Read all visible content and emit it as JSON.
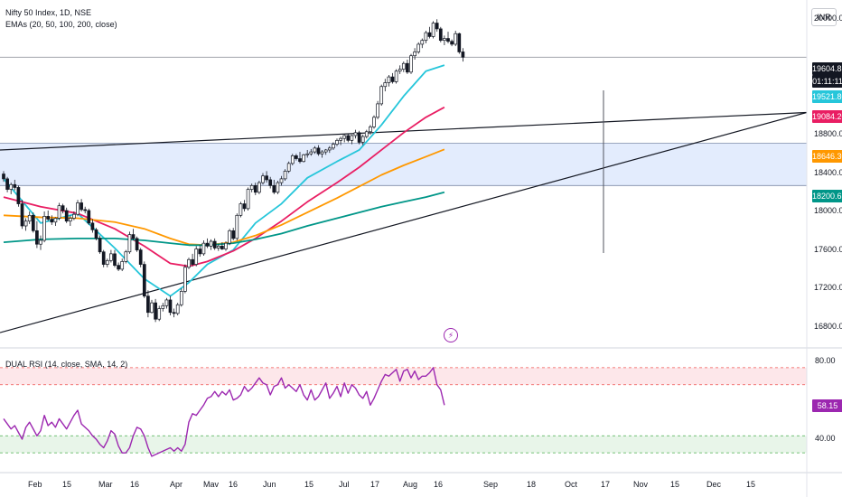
{
  "header": {
    "symbol": "Nifty 50 Index, 1D, NSE",
    "indicator": "EMAs (20, 50, 100, 200, close)",
    "currency": "INR"
  },
  "rsi_panel": {
    "label": "DUAL RSI (14, close, SMA, 14, 2)",
    "overbought": 80,
    "oversold": 40,
    "current_tag": "58.15",
    "upper_label": "80.00",
    "lower_label": "40.00"
  },
  "tags": {
    "last_price": "19604.85",
    "countdown": "01:11:11",
    "ema20": "19521.80",
    "ema50": "19084.20",
    "ema100": "18646.30",
    "ema200": "18200.65"
  },
  "colors": {
    "ema20": "#26c6da",
    "ema50": "#e91e63",
    "ema100": "#ff9800",
    "ema200": "#009688",
    "rsi": "#9c27b0",
    "zone_band": "#e3ecfd",
    "overbought_fill": "#fde7ea",
    "oversold_fill": "#e8f5e9"
  },
  "price_axis": [
    "20000.00",
    "18800.00",
    "18400.00",
    "18000.00",
    "17600.00",
    "17200.00",
    "16800.00"
  ],
  "time_axis": [
    "Feb",
    "15",
    "Mar",
    "16",
    "Apr",
    "Mav",
    "16",
    "Jun",
    "15",
    "Jul",
    "17",
    "Aug",
    "16",
    "Sep",
    "18",
    "Oct",
    "17",
    "Nov",
    "15",
    "Dec",
    "15"
  ],
  "alert_icon": "lightning-bolt-icon",
  "chart_data": {
    "type": "candlestick",
    "ylim": [
      16600,
      20200
    ],
    "xlabel": "",
    "ylabel": "",
    "candles": [
      [
        18390,
        18420,
        18310,
        18340
      ],
      [
        18340,
        18360,
        18200,
        18230
      ],
      [
        18230,
        18300,
        18180,
        18280
      ],
      [
        18280,
        18330,
        18220,
        18250
      ],
      [
        18250,
        18270,
        18050,
        18080
      ],
      [
        18080,
        18120,
        17820,
        17850
      ],
      [
        17850,
        17930,
        17800,
        17900
      ],
      [
        17900,
        18000,
        17870,
        17960
      ],
      [
        17960,
        17990,
        17780,
        17800
      ],
      [
        17800,
        17900,
        17620,
        17660
      ],
      [
        17660,
        17750,
        17600,
        17700
      ],
      [
        17700,
        18000,
        17680,
        17950
      ],
      [
        17950,
        18010,
        17900,
        17920
      ],
      [
        17920,
        17960,
        17860,
        17890
      ],
      [
        17890,
        17940,
        17850,
        17930
      ],
      [
        17930,
        18090,
        17910,
        18060
      ],
      [
        18060,
        18080,
        17980,
        18010
      ],
      [
        18010,
        18040,
        17880,
        17900
      ],
      [
        17900,
        17960,
        17850,
        17930
      ],
      [
        17930,
        18000,
        17910,
        17970
      ],
      [
        17970,
        18120,
        17950,
        18090
      ],
      [
        18090,
        18130,
        18000,
        18020
      ],
      [
        18020,
        18050,
        17980,
        18010
      ],
      [
        18010,
        18030,
        17860,
        17880
      ],
      [
        17880,
        17920,
        17780,
        17810
      ],
      [
        17810,
        17830,
        17700,
        17720
      ],
      [
        17720,
        17750,
        17560,
        17580
      ],
      [
        17580,
        17600,
        17420,
        17450
      ],
      [
        17450,
        17510,
        17420,
        17490
      ],
      [
        17490,
        17600,
        17470,
        17560
      ],
      [
        17560,
        17600,
        17420,
        17440
      ],
      [
        17440,
        17470,
        17380,
        17400
      ],
      [
        17400,
        17510,
        17380,
        17480
      ],
      [
        17480,
        17600,
        17460,
        17580
      ],
      [
        17580,
        17790,
        17560,
        17760
      ],
      [
        17760,
        17820,
        17700,
        17720
      ],
      [
        17720,
        17740,
        17580,
        17600
      ],
      [
        17600,
        17620,
        17420,
        17450
      ],
      [
        17450,
        17480,
        17100,
        17120
      ],
      [
        17120,
        17180,
        16900,
        16950
      ],
      [
        16950,
        17080,
        16940,
        17050
      ],
      [
        17050,
        17090,
        16850,
        16880
      ],
      [
        16880,
        17020,
        16860,
        16990
      ],
      [
        16990,
        17050,
        16960,
        17020
      ],
      [
        17020,
        17100,
        16990,
        17080
      ],
      [
        17080,
        17120,
        16920,
        16950
      ],
      [
        16950,
        16990,
        16900,
        16940
      ],
      [
        16940,
        17050,
        16920,
        17030
      ],
      [
        17030,
        17200,
        17010,
        17170
      ],
      [
        17170,
        17450,
        17150,
        17420
      ],
      [
        17420,
        17520,
        17400,
        17500
      ],
      [
        17500,
        17560,
        17430,
        17450
      ],
      [
        17450,
        17640,
        17430,
        17610
      ],
      [
        17610,
        17650,
        17530,
        17560
      ],
      [
        17560,
        17700,
        17540,
        17670
      ],
      [
        17670,
        17720,
        17620,
        17640
      ],
      [
        17640,
        17710,
        17600,
        17690
      ],
      [
        17690,
        17720,
        17600,
        17620
      ],
      [
        17620,
        17660,
        17590,
        17640
      ],
      [
        17640,
        17680,
        17600,
        17610
      ],
      [
        17610,
        17690,
        17590,
        17670
      ],
      [
        17670,
        17820,
        17650,
        17800
      ],
      [
        17800,
        17830,
        17700,
        17720
      ],
      [
        17720,
        17980,
        17700,
        17960
      ],
      [
        17960,
        18100,
        17940,
        18080
      ],
      [
        18080,
        18120,
        18000,
        18030
      ],
      [
        18030,
        18250,
        18010,
        18230
      ],
      [
        18230,
        18290,
        18200,
        18270
      ],
      [
        18270,
        18300,
        18170,
        18200
      ],
      [
        18200,
        18320,
        18180,
        18300
      ],
      [
        18300,
        18400,
        18280,
        18370
      ],
      [
        18370,
        18420,
        18300,
        18330
      ],
      [
        18330,
        18360,
        18240,
        18270
      ],
      [
        18270,
        18330,
        18180,
        18200
      ],
      [
        18200,
        18320,
        18180,
        18300
      ],
      [
        18300,
        18370,
        18270,
        18340
      ],
      [
        18340,
        18440,
        18320,
        18420
      ],
      [
        18420,
        18520,
        18400,
        18500
      ],
      [
        18500,
        18600,
        18480,
        18580
      ],
      [
        18580,
        18600,
        18530,
        18550
      ],
      [
        18550,
        18620,
        18500,
        18520
      ],
      [
        18520,
        18600,
        18510,
        18590
      ],
      [
        18590,
        18640,
        18560,
        18600
      ],
      [
        18600,
        18650,
        18580,
        18620
      ],
      [
        18620,
        18680,
        18600,
        18660
      ],
      [
        18660,
        18690,
        18580,
        18600
      ],
      [
        18600,
        18640,
        18560,
        18620
      ],
      [
        18620,
        18650,
        18590,
        18640
      ],
      [
        18640,
        18680,
        18610,
        18660
      ],
      [
        18660,
        18720,
        18640,
        18700
      ],
      [
        18700,
        18760,
        18680,
        18740
      ],
      [
        18740,
        18780,
        18690,
        18760
      ],
      [
        18760,
        18800,
        18720,
        18790
      ],
      [
        18790,
        18810,
        18720,
        18740
      ],
      [
        18740,
        18800,
        18700,
        18790
      ],
      [
        18790,
        18850,
        18760,
        18820
      ],
      [
        18820,
        18840,
        18700,
        18720
      ],
      [
        18720,
        18800,
        18690,
        18780
      ],
      [
        18780,
        18850,
        18760,
        18830
      ],
      [
        18830,
        18900,
        18800,
        18880
      ],
      [
        18880,
        19000,
        18860,
        18980
      ],
      [
        18980,
        19150,
        18960,
        19120
      ],
      [
        19120,
        19320,
        19100,
        19300
      ],
      [
        19300,
        19380,
        19250,
        19340
      ],
      [
        19340,
        19420,
        19300,
        19400
      ],
      [
        19400,
        19440,
        19330,
        19350
      ],
      [
        19350,
        19480,
        19330,
        19460
      ],
      [
        19460,
        19520,
        19430,
        19480
      ],
      [
        19480,
        19560,
        19450,
        19540
      ],
      [
        19540,
        19580,
        19430,
        19450
      ],
      [
        19450,
        19640,
        19430,
        19620
      ],
      [
        19620,
        19700,
        19580,
        19660
      ],
      [
        19660,
        19760,
        19640,
        19740
      ],
      [
        19740,
        19800,
        19700,
        19780
      ],
      [
        19780,
        19880,
        19750,
        19860
      ],
      [
        19860,
        19920,
        19800,
        19820
      ],
      [
        19820,
        19980,
        19800,
        19960
      ],
      [
        19960,
        20000,
        19870,
        19900
      ],
      [
        19900,
        19920,
        19760,
        19780
      ],
      [
        19780,
        19830,
        19730,
        19800
      ],
      [
        19800,
        19870,
        19750,
        19770
      ],
      [
        19770,
        19790,
        19720,
        19740
      ],
      [
        19740,
        19880,
        19720,
        19850
      ],
      [
        19850,
        19860,
        19640,
        19660
      ],
      [
        19660,
        19700,
        19560,
        19605
      ]
    ],
    "ema_series": [
      {
        "name": "EMA 20",
        "values": [
          [
            0,
            18340
          ],
          [
            10,
            17880
          ],
          [
            20,
            17980
          ],
          [
            30,
            17620
          ],
          [
            38,
            17300
          ],
          [
            45,
            17120
          ],
          [
            50,
            17260
          ],
          [
            55,
            17450
          ],
          [
            62,
            17600
          ],
          [
            68,
            17880
          ],
          [
            75,
            18080
          ],
          [
            82,
            18350
          ],
          [
            90,
            18520
          ],
          [
            96,
            18640
          ],
          [
            102,
            18900
          ],
          [
            108,
            19200
          ],
          [
            114,
            19460
          ],
          [
            119,
            19521.8
          ]
        ]
      },
      {
        "name": "EMA 50",
        "values": [
          [
            0,
            18150
          ],
          [
            10,
            18050
          ],
          [
            20,
            17980
          ],
          [
            30,
            17820
          ],
          [
            38,
            17640
          ],
          [
            45,
            17460
          ],
          [
            50,
            17430
          ],
          [
            55,
            17480
          ],
          [
            62,
            17590
          ],
          [
            68,
            17720
          ],
          [
            75,
            17900
          ],
          [
            82,
            18100
          ],
          [
            90,
            18300
          ],
          [
            96,
            18460
          ],
          [
            102,
            18640
          ],
          [
            108,
            18820
          ],
          [
            114,
            18980
          ],
          [
            119,
            19084.2
          ]
        ]
      },
      {
        "name": "EMA 100",
        "values": [
          [
            0,
            17960
          ],
          [
            10,
            17940
          ],
          [
            20,
            17930
          ],
          [
            30,
            17890
          ],
          [
            38,
            17820
          ],
          [
            45,
            17720
          ],
          [
            50,
            17660
          ],
          [
            55,
            17650
          ],
          [
            62,
            17680
          ],
          [
            68,
            17750
          ],
          [
            75,
            17860
          ],
          [
            82,
            17990
          ],
          [
            90,
            18140
          ],
          [
            96,
            18260
          ],
          [
            102,
            18380
          ],
          [
            108,
            18480
          ],
          [
            114,
            18570
          ],
          [
            119,
            18646.3
          ]
        ]
      },
      {
        "name": "EMA 200",
        "values": [
          [
            0,
            17680
          ],
          [
            10,
            17710
          ],
          [
            20,
            17720
          ],
          [
            30,
            17720
          ],
          [
            38,
            17700
          ],
          [
            45,
            17670
          ],
          [
            50,
            17650
          ],
          [
            55,
            17650
          ],
          [
            62,
            17670
          ],
          [
            68,
            17710
          ],
          [
            75,
            17770
          ],
          [
            82,
            17850
          ],
          [
            90,
            17930
          ],
          [
            96,
            17990
          ],
          [
            102,
            18050
          ],
          [
            108,
            18100
          ],
          [
            114,
            18150
          ],
          [
            119,
            18200.65
          ]
        ]
      }
    ],
    "zone": [
      18270,
      18710
    ],
    "last_price_line": 19604.85,
    "rsi": {
      "ylim": [
        20,
        90
      ],
      "values": [
        50,
        47,
        44,
        46,
        42,
        38,
        45,
        48,
        44,
        40,
        43,
        52,
        46,
        48,
        45,
        50,
        47,
        44,
        48,
        52,
        55,
        47,
        45,
        43,
        40,
        38,
        35,
        33,
        37,
        43,
        41,
        34,
        30,
        30,
        33,
        40,
        45,
        44,
        40,
        33,
        28,
        29,
        30,
        31,
        32,
        33,
        31,
        33,
        31,
        35,
        48,
        53,
        52,
        55,
        58,
        62,
        63,
        66,
        63,
        66,
        64,
        67,
        61,
        62,
        64,
        69,
        66,
        68,
        71,
        74,
        71,
        70,
        64,
        69,
        70,
        74,
        68,
        70,
        68,
        66,
        70,
        64,
        61,
        67,
        61,
        63,
        67,
        71,
        62,
        65,
        69,
        63,
        71,
        65,
        70,
        68,
        64,
        62,
        66,
        58,
        62,
        67,
        72,
        76,
        75,
        77,
        79,
        72,
        78,
        79,
        74,
        78,
        73,
        75,
        75,
        77,
        80,
        70,
        67,
        58
      ]
    }
  }
}
